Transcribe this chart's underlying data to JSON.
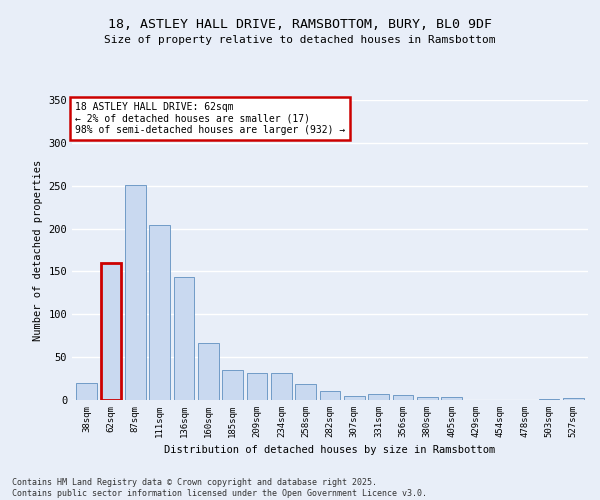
{
  "title_line1": "18, ASTLEY HALL DRIVE, RAMSBOTTOM, BURY, BL0 9DF",
  "title_line2": "Size of property relative to detached houses in Ramsbottom",
  "xlabel": "Distribution of detached houses by size in Ramsbottom",
  "ylabel": "Number of detached properties",
  "categories": [
    "38sqm",
    "62sqm",
    "87sqm",
    "111sqm",
    "136sqm",
    "160sqm",
    "185sqm",
    "209sqm",
    "234sqm",
    "258sqm",
    "282sqm",
    "307sqm",
    "331sqm",
    "356sqm",
    "380sqm",
    "405sqm",
    "429sqm",
    "454sqm",
    "478sqm",
    "503sqm",
    "527sqm"
  ],
  "values": [
    20,
    160,
    251,
    204,
    144,
    67,
    35,
    32,
    31,
    19,
    11,
    5,
    7,
    6,
    4,
    3,
    0,
    0,
    0,
    1,
    2
  ],
  "highlight_index": 1,
  "bar_color": "#c9d9f0",
  "bar_edge_color": "#6090c0",
  "highlight_bar_edge_color": "#cc0000",
  "background_color": "#e8eef8",
  "grid_color": "#ffffff",
  "annotation_text": "18 ASTLEY HALL DRIVE: 62sqm\n← 2% of detached houses are smaller (17)\n98% of semi-detached houses are larger (932) →",
  "annotation_box_color": "#cc0000",
  "footnote_line1": "Contains HM Land Registry data © Crown copyright and database right 2025.",
  "footnote_line2": "Contains public sector information licensed under the Open Government Licence v3.0.",
  "ylim": [
    0,
    350
  ],
  "yticks": [
    0,
    50,
    100,
    150,
    200,
    250,
    300,
    350
  ]
}
